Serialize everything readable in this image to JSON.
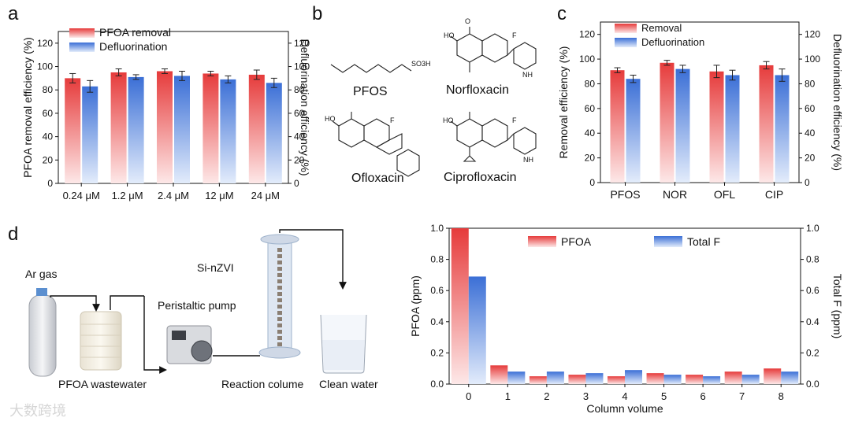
{
  "panel_labels": {
    "a": "a",
    "b": "b",
    "c": "c",
    "d": "d"
  },
  "molecules": {
    "pfos": "PFOS",
    "norfloxacin": "Norfloxacin",
    "ofloxacin": "Ofloxacin",
    "ciprofloxacin": "Ciprofloxacin",
    "so3h": "SO3H",
    "atoms": {
      "F": "F",
      "O": "O",
      "N": "N",
      "NH": "NH",
      "HO": "HO"
    }
  },
  "diagram": {
    "ar_gas": "Ar gas",
    "pfoa_wastewater": "PFOA wastewater",
    "peristaltic_pump": "Peristaltic pump",
    "si_nzvi": "Si-nZVI",
    "reaction_column": "Reaction colume",
    "clean_water": "Clean water"
  },
  "colors": {
    "red": "#e63b3b",
    "blue": "#3b6fd6",
    "red_light": "#fde8e8",
    "blue_light": "#e3ecfb"
  },
  "watermark": "大数跨境",
  "chart_data": [
    {
      "type": "bar",
      "id": "a",
      "categories": [
        "0.24 μM",
        "1.2 μM",
        "2.4 μM",
        "12 μM",
        "24 μM"
      ],
      "series": [
        {
          "name": "PFOA removal",
          "values": [
            90,
            95,
            96,
            94,
            93
          ],
          "errors": [
            4,
            3,
            2,
            2,
            4
          ]
        },
        {
          "name": "Defluorination",
          "values": [
            83,
            91,
            92,
            89,
            86
          ],
          "errors": [
            5,
            2,
            4,
            3,
            4
          ]
        }
      ],
      "ylabel": "PFOA removal efficiency (%)",
      "y2label": "Defluorination efficiency (%)",
      "ylim": [
        0,
        130
      ],
      "yticks": [
        0,
        20,
        40,
        60,
        80,
        100,
        120
      ],
      "legend": "top-left"
    },
    {
      "type": "bar",
      "id": "c",
      "categories": [
        "PFOS",
        "NOR",
        "OFL",
        "CIP"
      ],
      "series": [
        {
          "name": "Removal",
          "values": [
            91,
            97,
            90,
            95
          ],
          "errors": [
            2,
            2,
            5,
            3
          ]
        },
        {
          "name": "Defluorination",
          "values": [
            84,
            92,
            87,
            87
          ],
          "errors": [
            3,
            3,
            4,
            5
          ]
        }
      ],
      "ylabel": "Removal efficiency (%)",
      "y2label": "Defluorination efficiency (%)",
      "ylim": [
        0,
        130
      ],
      "yticks": [
        0,
        20,
        40,
        60,
        80,
        100,
        120
      ],
      "legend": "top-left"
    },
    {
      "type": "bar",
      "id": "d",
      "categories": [
        "0",
        "1",
        "2",
        "3",
        "4",
        "5",
        "6",
        "7",
        "8"
      ],
      "series": [
        {
          "name": "PFOA",
          "values": [
            1.0,
            0.12,
            0.05,
            0.06,
            0.05,
            0.07,
            0.06,
            0.08,
            0.1
          ]
        },
        {
          "name": "Total F",
          "values": [
            0.69,
            0.08,
            0.08,
            0.07,
            0.09,
            0.06,
            0.05,
            0.06,
            0.08
          ]
        }
      ],
      "xlabel": "Column volume",
      "ylabel": "PFOA (ppm)",
      "y2label": "Total F (ppm)",
      "ylim": [
        0,
        1.0
      ],
      "yticks": [
        0.0,
        0.2,
        0.4,
        0.6,
        0.8,
        1.0
      ],
      "legend": "top"
    }
  ]
}
